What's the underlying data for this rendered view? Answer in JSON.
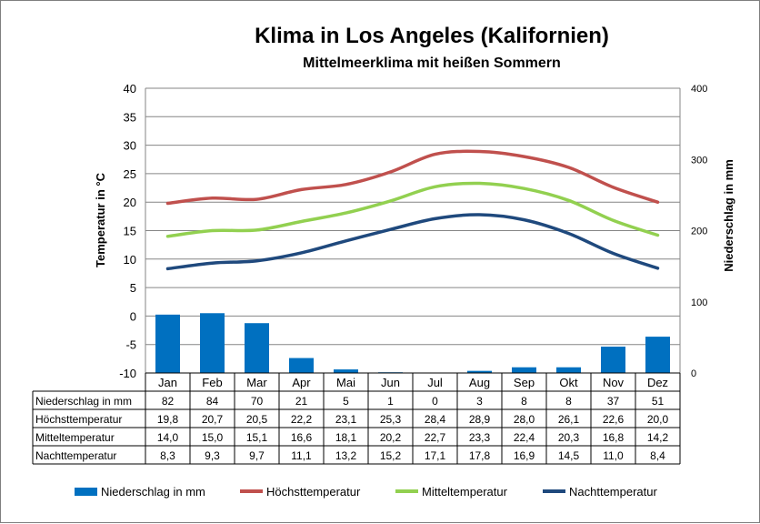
{
  "chart_data": {
    "type": "bar",
    "title": "Klima in Los Angeles (Kalifornien)",
    "subtitle": "Mittelmeerklima mit heißen Sommern",
    "y_left_label": "Temperatur in °C",
    "y_right_label": "Niederschlag in mm",
    "ylim_left": [
      -10,
      40
    ],
    "ylim_right": [
      0,
      400
    ],
    "y_left_ticks": [
      "-10",
      "-5",
      "0",
      "5",
      "10",
      "15",
      "20",
      "25",
      "30",
      "35",
      "40"
    ],
    "y_right_ticks": [
      "0",
      "100",
      "200",
      "300",
      "400"
    ],
    "categories": [
      "Jan",
      "Feb",
      "Mar",
      "Apr",
      "Mai",
      "Jun",
      "Jul",
      "Aug",
      "Sep",
      "Okt",
      "Nov",
      "Dez"
    ],
    "grid": true,
    "legend_position": "bottom",
    "series": [
      {
        "name": "Niederschlag in mm",
        "kind": "bar",
        "axis": "right",
        "color": "#0070c0",
        "values": [
          82,
          84,
          70,
          21,
          5,
          1,
          0,
          3,
          8,
          8,
          37,
          51
        ],
        "labels": [
          "82",
          "84",
          "70",
          "21",
          "5",
          "1",
          "0",
          "3",
          "8",
          "8",
          "37",
          "51"
        ]
      },
      {
        "name": "Höchsttemperatur",
        "kind": "line",
        "axis": "left",
        "color": "#c0504d",
        "values": [
          19.8,
          20.7,
          20.5,
          22.2,
          23.1,
          25.3,
          28.4,
          28.9,
          28.0,
          26.1,
          22.6,
          20.0
        ],
        "labels": [
          "19,8",
          "20,7",
          "20,5",
          "22,2",
          "23,1",
          "25,3",
          "28,4",
          "28,9",
          "28,0",
          "26,1",
          "22,6",
          "20,0"
        ]
      },
      {
        "name": "Mitteltemperatur",
        "kind": "line",
        "axis": "left",
        "color": "#92d050",
        "values": [
          14.0,
          15.0,
          15.1,
          16.6,
          18.1,
          20.2,
          22.7,
          23.3,
          22.4,
          20.3,
          16.8,
          14.2
        ],
        "labels": [
          "14,0",
          "15,0",
          "15,1",
          "16,6",
          "18,1",
          "20,2",
          "22,7",
          "23,3",
          "22,4",
          "20,3",
          "16,8",
          "14,2"
        ]
      },
      {
        "name": "Nachttemperatur",
        "kind": "line",
        "axis": "left",
        "color": "#1f497d",
        "values": [
          8.3,
          9.3,
          9.7,
          11.1,
          13.2,
          15.2,
          17.1,
          17.8,
          16.9,
          14.5,
          11.0,
          8.4
        ],
        "labels": [
          "8,3",
          "9,3",
          "9,7",
          "11,1",
          "13,2",
          "15,2",
          "17,1",
          "17,8",
          "16,9",
          "14,5",
          "11,0",
          "8,4"
        ]
      }
    ]
  }
}
